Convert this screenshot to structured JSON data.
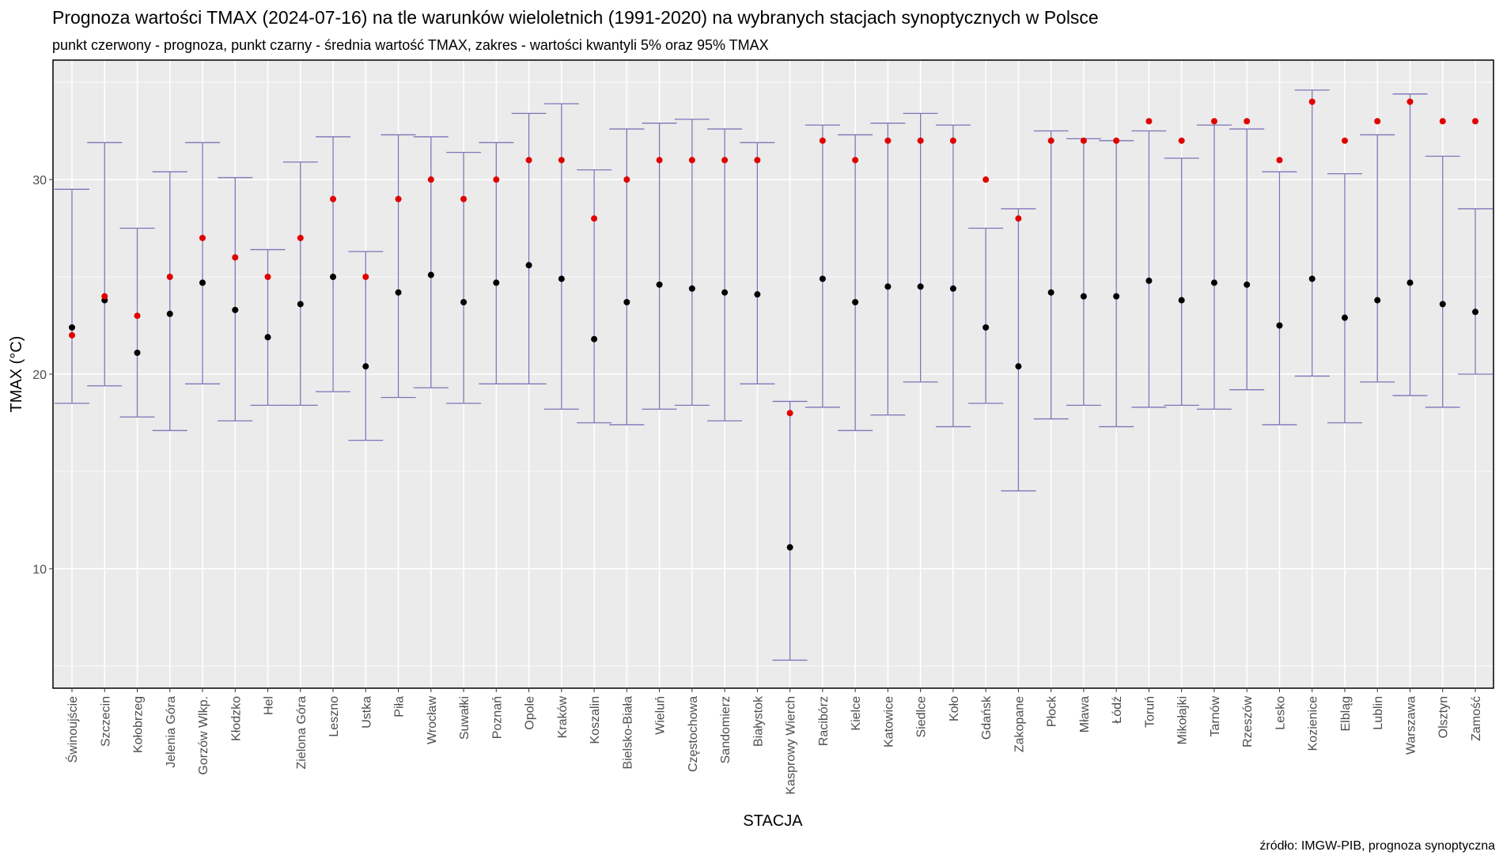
{
  "chart_data": {
    "type": "errorbar",
    "title": "Prognoza wartości TMAX (2024-07-16) na tle warunków wieloletnich (1991-2020) na wybranych stacjach synoptycznych w Polsce",
    "subtitle": "punkt czerwony - prognoza, punkt czarny - średnia wartość TMAX, zakres - wartości kwantyli 5% oraz 95% TMAX",
    "xlabel": "STACJA",
    "ylabel": "TMAX (°C)",
    "caption": "źródło: IMGW-PIB, prognoza synoptyczna",
    "ylim": [
      3.86,
      36.14
    ],
    "yticks": [
      10,
      20,
      30
    ],
    "grid": true,
    "colors": {
      "forecast": "#e00000",
      "mean": "#000000",
      "range": "#7b76b8",
      "panel": "#ebebeb"
    },
    "categories": [
      "Świnoujście",
      "Szczecin",
      "Kołobrzeg",
      "Jelenia Góra",
      "Gorzów Wlkp.",
      "Kłodzko",
      "Hel",
      "Zielona Góra",
      "Leszno",
      "Ustka",
      "Piła",
      "Wrocław",
      "Suwałki",
      "Poznań",
      "Opole",
      "Kraków",
      "Koszalin",
      "Bielsko-Biała",
      "Wieluń",
      "Częstochowa",
      "Sandomierz",
      "Białystok",
      "Kasprowy Wierch",
      "Racibórz",
      "Kielce",
      "Katowice",
      "Siedlce",
      "Koło",
      "Gdańsk",
      "Zakopane",
      "Płock",
      "Mława",
      "Łódź",
      "Toruń",
      "Mikołajki",
      "Tarnów",
      "Rzeszów",
      "Lesko",
      "Kozienice",
      "Elbląg",
      "Lublin",
      "Warszawa",
      "Olsztyn",
      "Zamość"
    ],
    "q95": [
      29.5,
      31.9,
      27.5,
      30.4,
      31.9,
      30.1,
      26.4,
      30.9,
      32.2,
      26.3,
      32.3,
      32.2,
      31.4,
      31.9,
      33.4,
      33.9,
      30.5,
      32.6,
      32.9,
      33.1,
      32.6,
      31.9,
      18.6,
      32.8,
      32.3,
      32.9,
      33.4,
      32.8,
      27.5,
      28.5,
      32.5,
      32.1,
      32.0,
      32.5,
      31.1,
      32.8,
      32.6,
      30.4,
      34.6,
      30.3,
      32.3,
      34.4,
      31.2,
      28.5
    ],
    "q5": [
      18.5,
      19.4,
      17.8,
      17.1,
      19.5,
      17.6,
      18.4,
      18.4,
      19.1,
      16.6,
      18.8,
      19.3,
      18.5,
      19.5,
      19.5,
      18.2,
      17.5,
      17.4,
      18.2,
      18.4,
      17.6,
      19.5,
      5.3,
      18.3,
      17.1,
      17.9,
      19.6,
      17.3,
      18.5,
      14.0,
      17.7,
      18.4,
      17.3,
      18.3,
      18.4,
      18.2,
      19.2,
      17.4,
      19.9,
      17.5,
      19.6,
      18.9,
      18.3,
      20.0
    ],
    "mean": [
      22.4,
      23.8,
      21.1,
      23.1,
      24.7,
      23.3,
      21.9,
      23.6,
      25.0,
      20.4,
      24.2,
      25.1,
      23.7,
      24.7,
      25.6,
      24.9,
      21.8,
      23.7,
      24.6,
      24.4,
      24.2,
      24.1,
      11.1,
      24.9,
      23.7,
      24.5,
      24.5,
      24.4,
      22.4,
      20.4,
      24.2,
      24.0,
      24.0,
      24.8,
      23.8,
      24.7,
      24.6,
      22.5,
      24.9,
      22.9,
      23.8,
      24.7,
      23.6,
      23.2
    ],
    "forecast": [
      22,
      24,
      23,
      25,
      27,
      26,
      25,
      27,
      29,
      25,
      29,
      30,
      29,
      30,
      31,
      31,
      28,
      30,
      31,
      31,
      31,
      31,
      18,
      32,
      31,
      32,
      32,
      32,
      30,
      28,
      32,
      32,
      32,
      33,
      32,
      33,
      33,
      31,
      34,
      32,
      33,
      34,
      33,
      33
    ]
  }
}
